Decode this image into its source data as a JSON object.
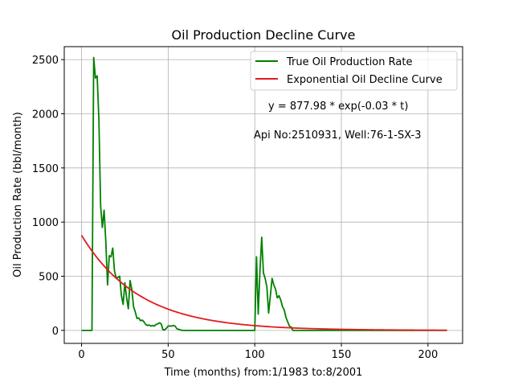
{
  "chart_data": {
    "type": "line",
    "title": "Oil Production Decline Curve",
    "xlabel": "Time (months) from:1/1983 to:8/2001",
    "ylabel": "Oil Production Rate (bbl/month)",
    "xlim": [
      -10,
      220
    ],
    "ylim": [
      -120,
      2620
    ],
    "grid": true,
    "legend_position": "top-right",
    "x_ticks": [
      0,
      50,
      100,
      150,
      200
    ],
    "y_ticks": [
      0,
      500,
      1000,
      1500,
      2000,
      2500
    ],
    "annotations": [
      {
        "text": "y = 877.98 * exp(-0.03 * t)",
        "x": 108,
        "y": 2060
      },
      {
        "text": "Api No:2510931, Well:76-1-SX-3",
        "x": 100,
        "y": 1790
      }
    ],
    "series": [
      {
        "name": "True Oil Production Rate",
        "color": "#008000",
        "x": [
          0,
          1,
          2,
          3,
          4,
          5,
          6,
          7,
          8,
          9,
          10,
          11,
          12,
          13,
          14,
          15,
          16,
          17,
          18,
          19,
          20,
          21,
          22,
          23,
          24,
          25,
          26,
          27,
          28,
          29,
          30,
          31,
          32,
          33,
          34,
          35,
          36,
          37,
          38,
          39,
          40,
          41,
          42,
          43,
          44,
          45,
          46,
          47,
          48,
          49,
          50,
          51,
          52,
          53,
          54,
          55,
          56,
          57,
          58,
          59,
          60,
          61,
          62,
          63,
          64,
          65,
          66,
          67,
          68,
          69,
          70,
          71,
          72,
          73,
          74,
          75,
          76,
          77,
          78,
          79,
          80,
          81,
          82,
          83,
          84,
          85,
          86,
          87,
          88,
          89,
          90,
          91,
          92,
          93,
          94,
          95,
          96,
          97,
          98,
          99,
          100,
          101,
          102,
          103,
          104,
          105,
          106,
          107,
          108,
          109,
          110,
          111,
          112,
          113,
          114,
          115,
          116,
          117,
          118,
          119,
          120,
          121,
          122,
          123,
          124,
          125,
          130,
          140,
          150,
          160,
          170,
          180,
          190,
          200,
          211
        ],
        "values": [
          0,
          0,
          0,
          0,
          0,
          0,
          0,
          2520,
          2330,
          2350,
          1950,
          1150,
          950,
          1110,
          820,
          420,
          690,
          680,
          760,
          550,
          480,
          490,
          500,
          320,
          240,
          440,
          300,
          200,
          460,
          380,
          220,
          170,
          110,
          115,
          90,
          95,
          80,
          55,
          45,
          50,
          40,
          45,
          40,
          55,
          60,
          70,
          60,
          5,
          5,
          20,
          40,
          40,
          40,
          45,
          40,
          15,
          10,
          5,
          0,
          0,
          0,
          0,
          0,
          0,
          0,
          0,
          0,
          0,
          0,
          0,
          0,
          0,
          0,
          0,
          0,
          0,
          0,
          0,
          0,
          0,
          0,
          0,
          0,
          0,
          0,
          0,
          0,
          0,
          0,
          0,
          0,
          0,
          0,
          0,
          0,
          0,
          0,
          0,
          0,
          0,
          0,
          680,
          150,
          550,
          860,
          530,
          480,
          400,
          160,
          320,
          480,
          420,
          380,
          300,
          320,
          280,
          220,
          190,
          120,
          80,
          40,
          30,
          0,
          0,
          0,
          0,
          0,
          0,
          0,
          0,
          0,
          0,
          0,
          0,
          0
        ]
      },
      {
        "name": "Exponential Oil Decline Curve",
        "color": "#e41a1c",
        "model": {
          "a": 877.98,
          "b": 0.03,
          "t_start": 0,
          "t_end": 211
        }
      }
    ]
  }
}
